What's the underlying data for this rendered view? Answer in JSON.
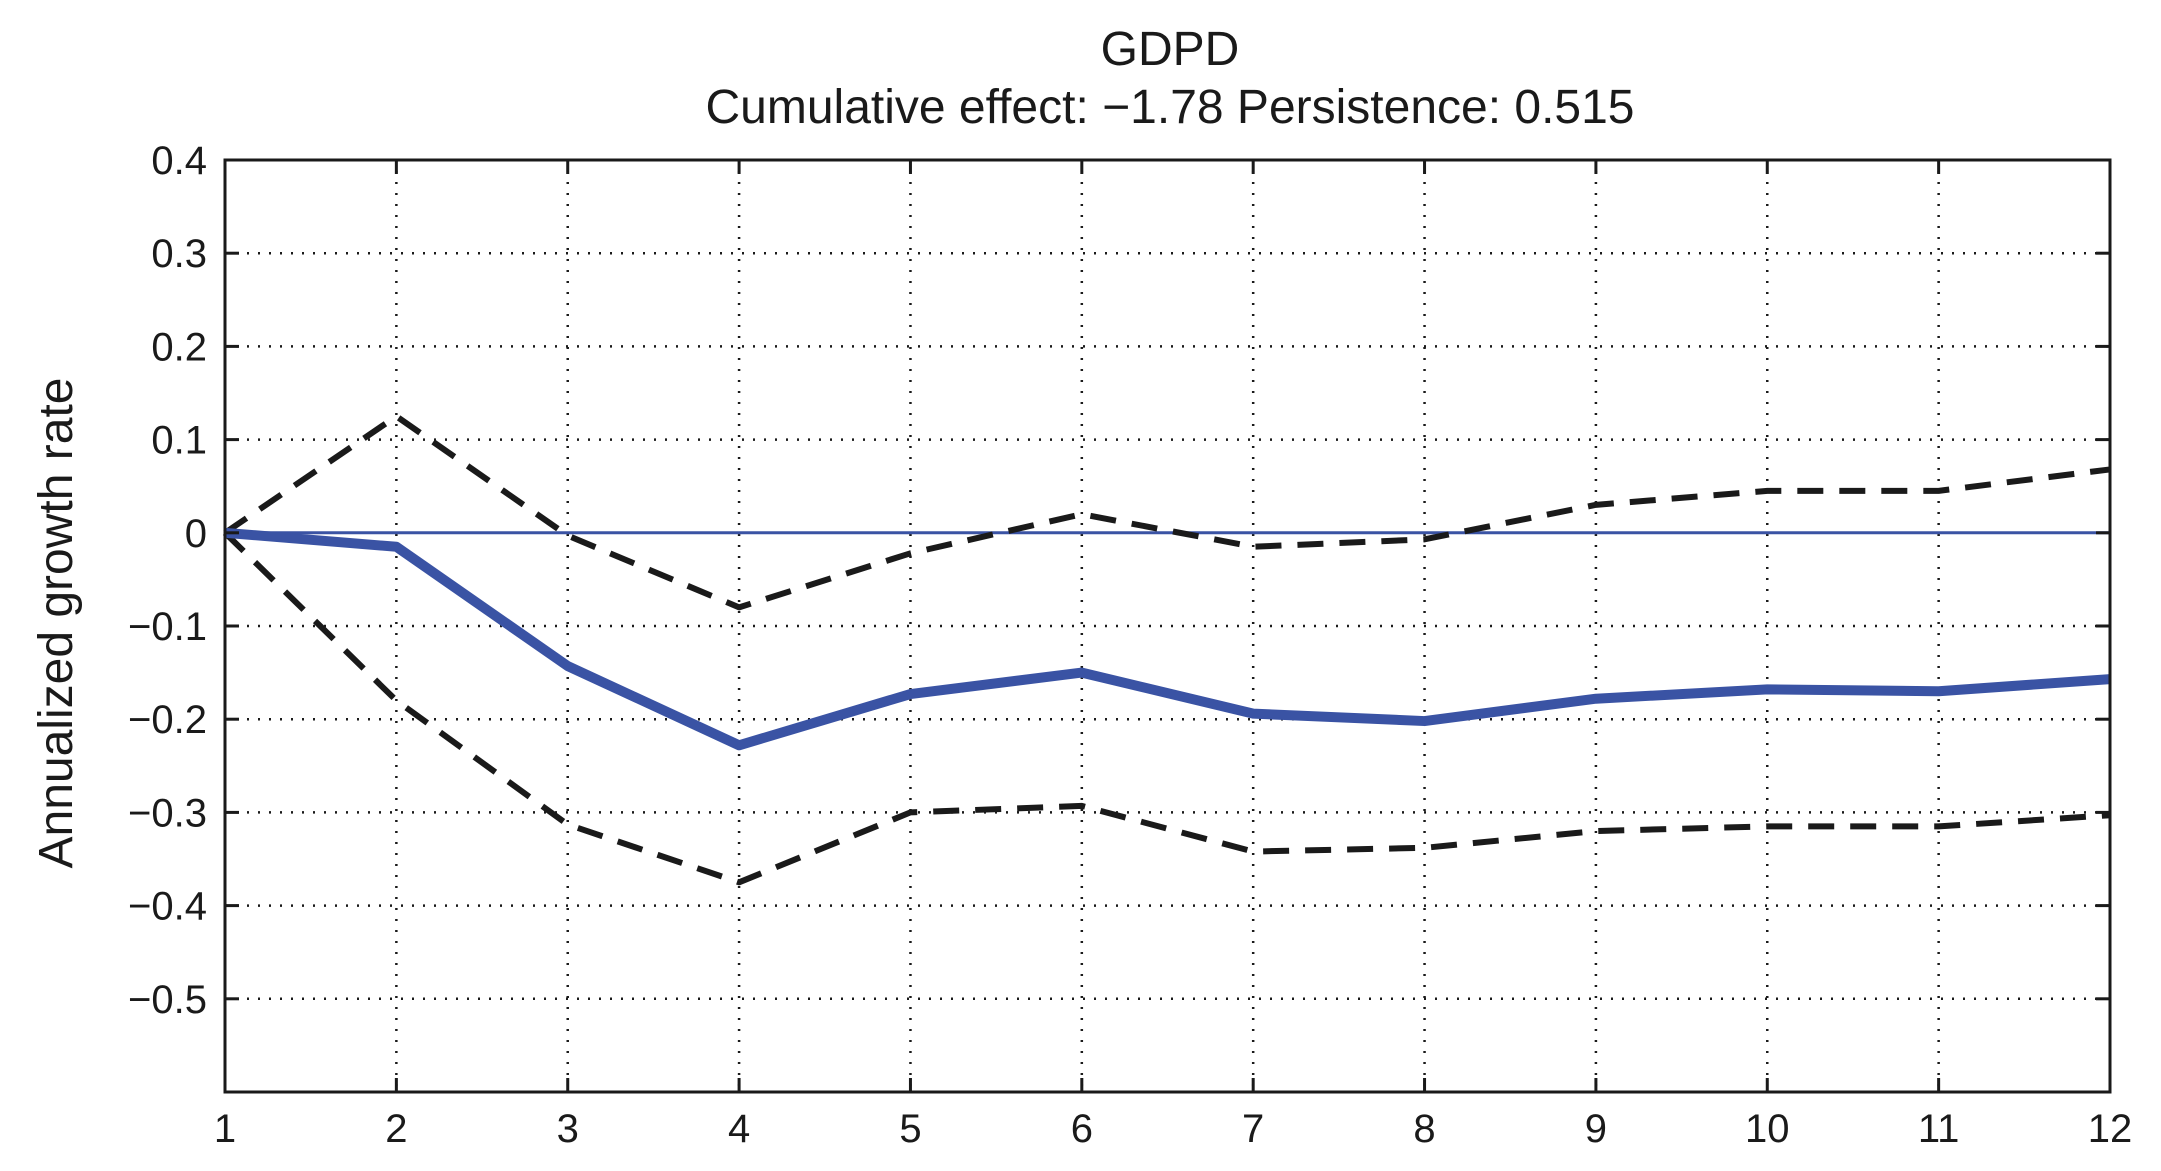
{
  "chart_data": {
    "type": "line",
    "title": "GDPD",
    "subtitle": "Cumulative effect: −1.78  Persistence: 0.515",
    "xlabel": "",
    "ylabel": "Annualized growth rate",
    "x": [
      1,
      2,
      3,
      4,
      5,
      6,
      7,
      8,
      9,
      10,
      11,
      12
    ],
    "xlim": [
      1,
      12
    ],
    "ylim": [
      -0.6,
      0.4
    ],
    "xticks": [
      "1",
      "2",
      "3",
      "4",
      "5",
      "6",
      "7",
      "8",
      "9",
      "10",
      "11",
      "12"
    ],
    "yticks": [
      0.4,
      0.3,
      0.2,
      0.1,
      0,
      -0.1,
      -0.2,
      -0.3,
      -0.4,
      -0.5
    ],
    "ytick_labels": [
      "0.4",
      "0.3",
      "0.2",
      "0.1",
      "0",
      "−0.1",
      "−0.2",
      "−0.3",
      "−0.4",
      "−0.5"
    ],
    "grid": true,
    "series": [
      {
        "role": "estimate",
        "color": "#3a53a4",
        "style": "solid-thick",
        "values": [
          0.0,
          -0.015,
          -0.143,
          -0.228,
          -0.173,
          -0.15,
          -0.194,
          -0.202,
          -0.178,
          -0.168,
          -0.17,
          -0.157
        ]
      },
      {
        "role": "upper-band",
        "color": "#1a1a1a",
        "style": "dashed",
        "values": [
          0.0,
          0.125,
          -0.003,
          -0.08,
          -0.022,
          0.02,
          -0.015,
          -0.007,
          0.03,
          0.045,
          0.045,
          0.068
        ]
      },
      {
        "role": "lower-band",
        "color": "#1a1a1a",
        "style": "dashed",
        "values": [
          0.0,
          -0.18,
          -0.313,
          -0.375,
          -0.3,
          -0.293,
          -0.342,
          -0.338,
          -0.32,
          -0.315,
          -0.315,
          -0.303
        ]
      },
      {
        "role": "zero-line",
        "color": "#3a53a4",
        "style": "solid-thin",
        "values": [
          0,
          0,
          0,
          0,
          0,
          0,
          0,
          0,
          0,
          0,
          0,
          0
        ]
      }
    ]
  }
}
